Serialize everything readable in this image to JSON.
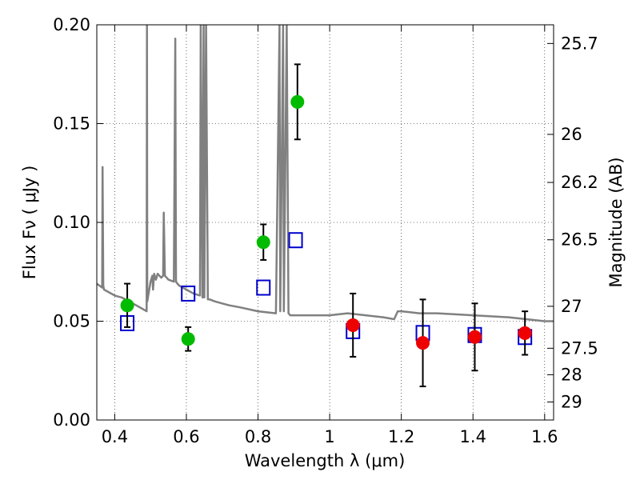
{
  "chart_data": {
    "type": "scatter",
    "xlabel": "Wavelength  λ (μm)",
    "ylabel": "Flux  Fν  ( μJy )",
    "y2label": "Magnitude (AB)",
    "xlim": [
      0.35,
      1.625
    ],
    "ylim": [
      0.0,
      0.2
    ],
    "grid": true,
    "x_ticks": [
      0.4,
      0.6,
      0.8,
      1.0,
      1.2,
      1.4,
      1.6
    ],
    "x_tick_labels": [
      "0.4",
      "0.6",
      "0.8",
      "1",
      "1.2",
      "1.4",
      "1.6"
    ],
    "y_ticks": [
      0.0,
      0.05,
      0.1,
      0.15,
      0.2
    ],
    "y_tick_labels": [
      "0.00",
      "0.05",
      "0.10",
      "0.15",
      "0.20"
    ],
    "mag_ticks": [
      25.7,
      26,
      26.2,
      26.5,
      27,
      27.5,
      28,
      29
    ],
    "mag_tick_labels": [
      "25.7",
      "26",
      "26.2",
      "26.5",
      "27",
      "27.5",
      "28",
      "29"
    ],
    "series": [
      {
        "kind": "line",
        "color": "#808080",
        "x": [
          0.35,
          0.365,
          0.366,
          0.368,
          0.37,
          0.38,
          0.4,
          0.42,
          0.44,
          0.46,
          0.48,
          0.489,
          0.49,
          0.491,
          0.5,
          0.505,
          0.507,
          0.51,
          0.515,
          0.52,
          0.53,
          0.535,
          0.537,
          0.54,
          0.55,
          0.565,
          0.569,
          0.571,
          0.575,
          0.58,
          0.6,
          0.62,
          0.638,
          0.64,
          0.645,
          0.648,
          0.65,
          0.655,
          0.66,
          0.665,
          0.68,
          0.7,
          0.72,
          0.75,
          0.8,
          0.85,
          0.86,
          0.862,
          0.87,
          0.872,
          0.88,
          0.885,
          0.89,
          0.9,
          0.95,
          1.0,
          1.05,
          1.1,
          1.15,
          1.18,
          1.19,
          1.2,
          1.25,
          1.3,
          1.4,
          1.5,
          1.6,
          1.625
        ],
        "y": [
          0.069,
          0.067,
          0.128,
          0.068,
          0.066,
          0.065,
          0.063,
          0.062,
          0.06,
          0.058,
          0.056,
          0.055,
          0.2,
          0.06,
          0.07,
          0.073,
          0.066,
          0.074,
          0.071,
          0.074,
          0.072,
          0.073,
          0.105,
          0.073,
          0.071,
          0.07,
          0.193,
          0.07,
          0.069,
          0.068,
          0.066,
          0.064,
          0.063,
          0.2,
          0.062,
          0.2,
          0.062,
          0.2,
          0.061,
          0.061,
          0.06,
          0.059,
          0.058,
          0.057,
          0.055,
          0.054,
          0.2,
          0.055,
          0.2,
          0.055,
          0.2,
          0.054,
          0.053,
          0.053,
          0.053,
          0.053,
          0.054,
          0.053,
          0.052,
          0.051,
          0.055,
          0.055,
          0.054,
          0.054,
          0.053,
          0.052,
          0.05,
          0.05
        ]
      },
      {
        "kind": "open-square",
        "color": "#0000cc",
        "x": [
          0.435,
          0.605,
          0.815,
          0.905,
          1.065,
          1.26,
          1.405,
          1.545
        ],
        "y": [
          0.049,
          0.064,
          0.067,
          0.091,
          0.045,
          0.044,
          0.043,
          0.042
        ]
      },
      {
        "kind": "filled-circle",
        "color": "#00bb00",
        "x": [
          0.435,
          0.605,
          0.815,
          0.91
        ],
        "y": [
          0.058,
          0.041,
          0.09,
          0.161
        ],
        "yerr": [
          0.011,
          0.006,
          0.009,
          0.019
        ]
      },
      {
        "kind": "filled-circle",
        "color": "#ee0000",
        "x": [
          1.065,
          1.26,
          1.405,
          1.545
        ],
        "y": [
          0.048,
          0.039,
          0.042,
          0.044
        ],
        "yerr": [
          0.016,
          0.022,
          0.017,
          0.011
        ]
      }
    ]
  }
}
